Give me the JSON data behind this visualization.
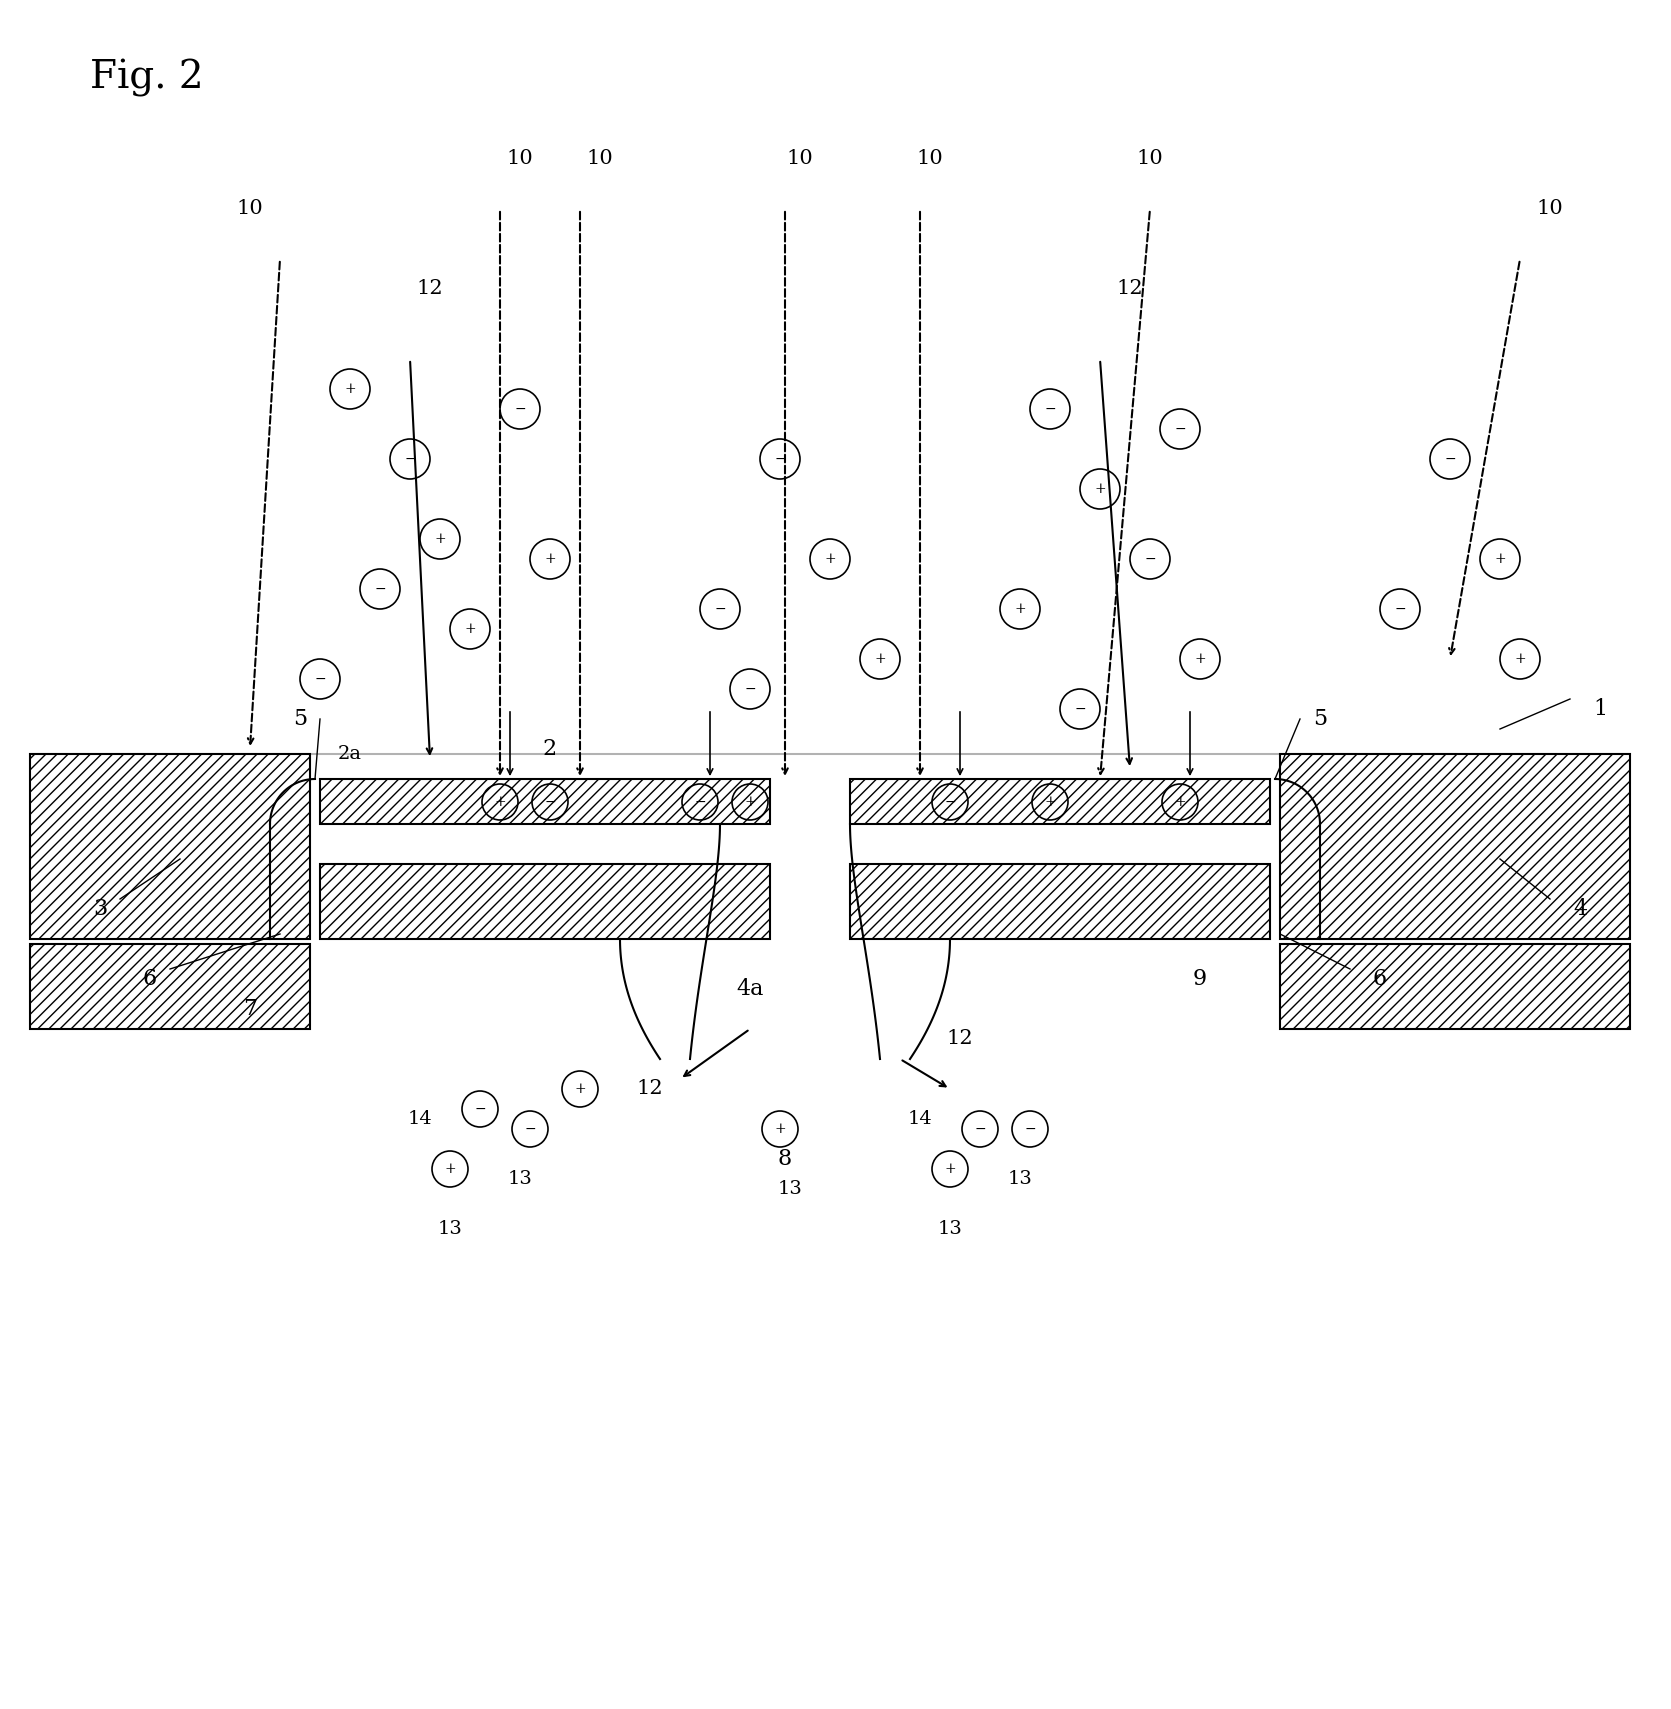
{
  "title": "Fig. 2",
  "bg_color": "#ffffff",
  "line_color": "#000000",
  "hatch_color": "#000000",
  "figsize": [
    16.71,
    17.09
  ],
  "dpi": 100
}
